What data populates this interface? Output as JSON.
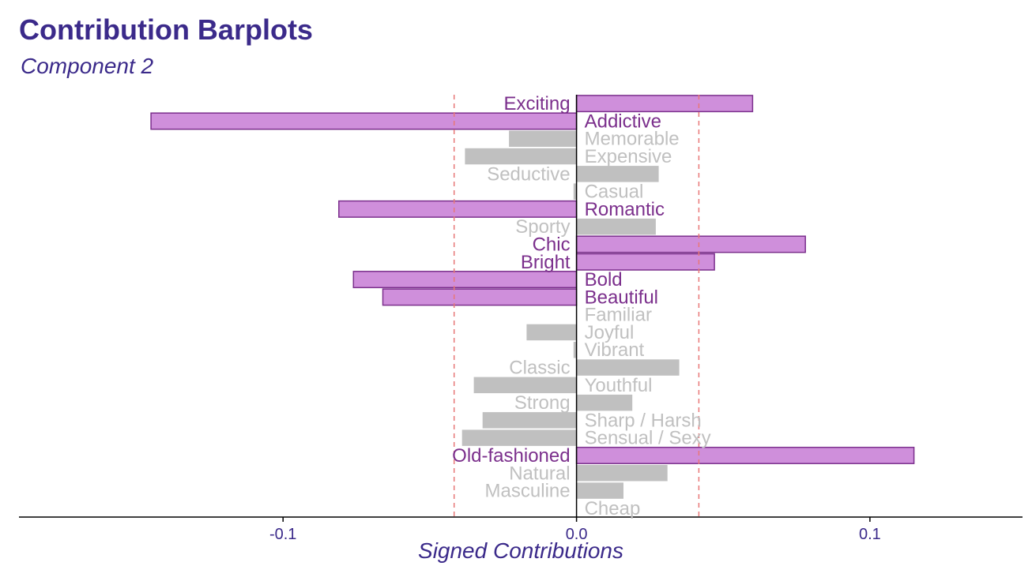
{
  "chart_data": {
    "type": "bar",
    "orientation": "horizontal",
    "title": "Contribution Barplots",
    "subtitle": "Component 2",
    "xlabel": "Signed Contributions",
    "ylabel": "",
    "xlim": [
      -0.19,
      0.152
    ],
    "xticks": [
      -0.1,
      0.0,
      0.1
    ],
    "xtick_labels": [
      "-0.1",
      "0.0",
      "0.1"
    ],
    "threshold": 0.0417,
    "colors": {
      "significant_fill": "#cf8fdb",
      "significant_stroke": "#7b2f8c",
      "significant_text": "#7b2f8c",
      "nonsignificant_fill": "#c0c0c0",
      "nonsignificant_text": "#c0c0c0",
      "threshold_line": "#e87878",
      "axis": "#000000"
    },
    "categories": [
      "Exciting",
      "Addictive",
      "Memorable",
      "Expensive",
      "Seductive",
      "Casual",
      "Romantic",
      "Sporty",
      "Chic",
      "Bright",
      "Bold",
      "Beautiful",
      "Familiar",
      "Joyful",
      "Vibrant",
      "Classic",
      "Youthful",
      "Strong",
      "Sharp / Harsh",
      "Sensual / Sexy",
      "Old-fashioned",
      "Natural",
      "Masculine",
      "Cheap"
    ],
    "values": [
      0.06,
      -0.145,
      -0.023,
      -0.038,
      0.028,
      -0.001,
      -0.081,
      0.027,
      0.078,
      0.047,
      -0.076,
      -0.066,
      0.0,
      -0.017,
      -0.001,
      0.035,
      -0.035,
      0.019,
      -0.032,
      -0.039,
      0.115,
      0.031,
      0.016,
      0.0
    ],
    "significant": [
      true,
      true,
      false,
      false,
      false,
      false,
      true,
      false,
      true,
      true,
      true,
      true,
      false,
      false,
      false,
      false,
      false,
      false,
      false,
      false,
      true,
      false,
      false,
      false
    ]
  }
}
